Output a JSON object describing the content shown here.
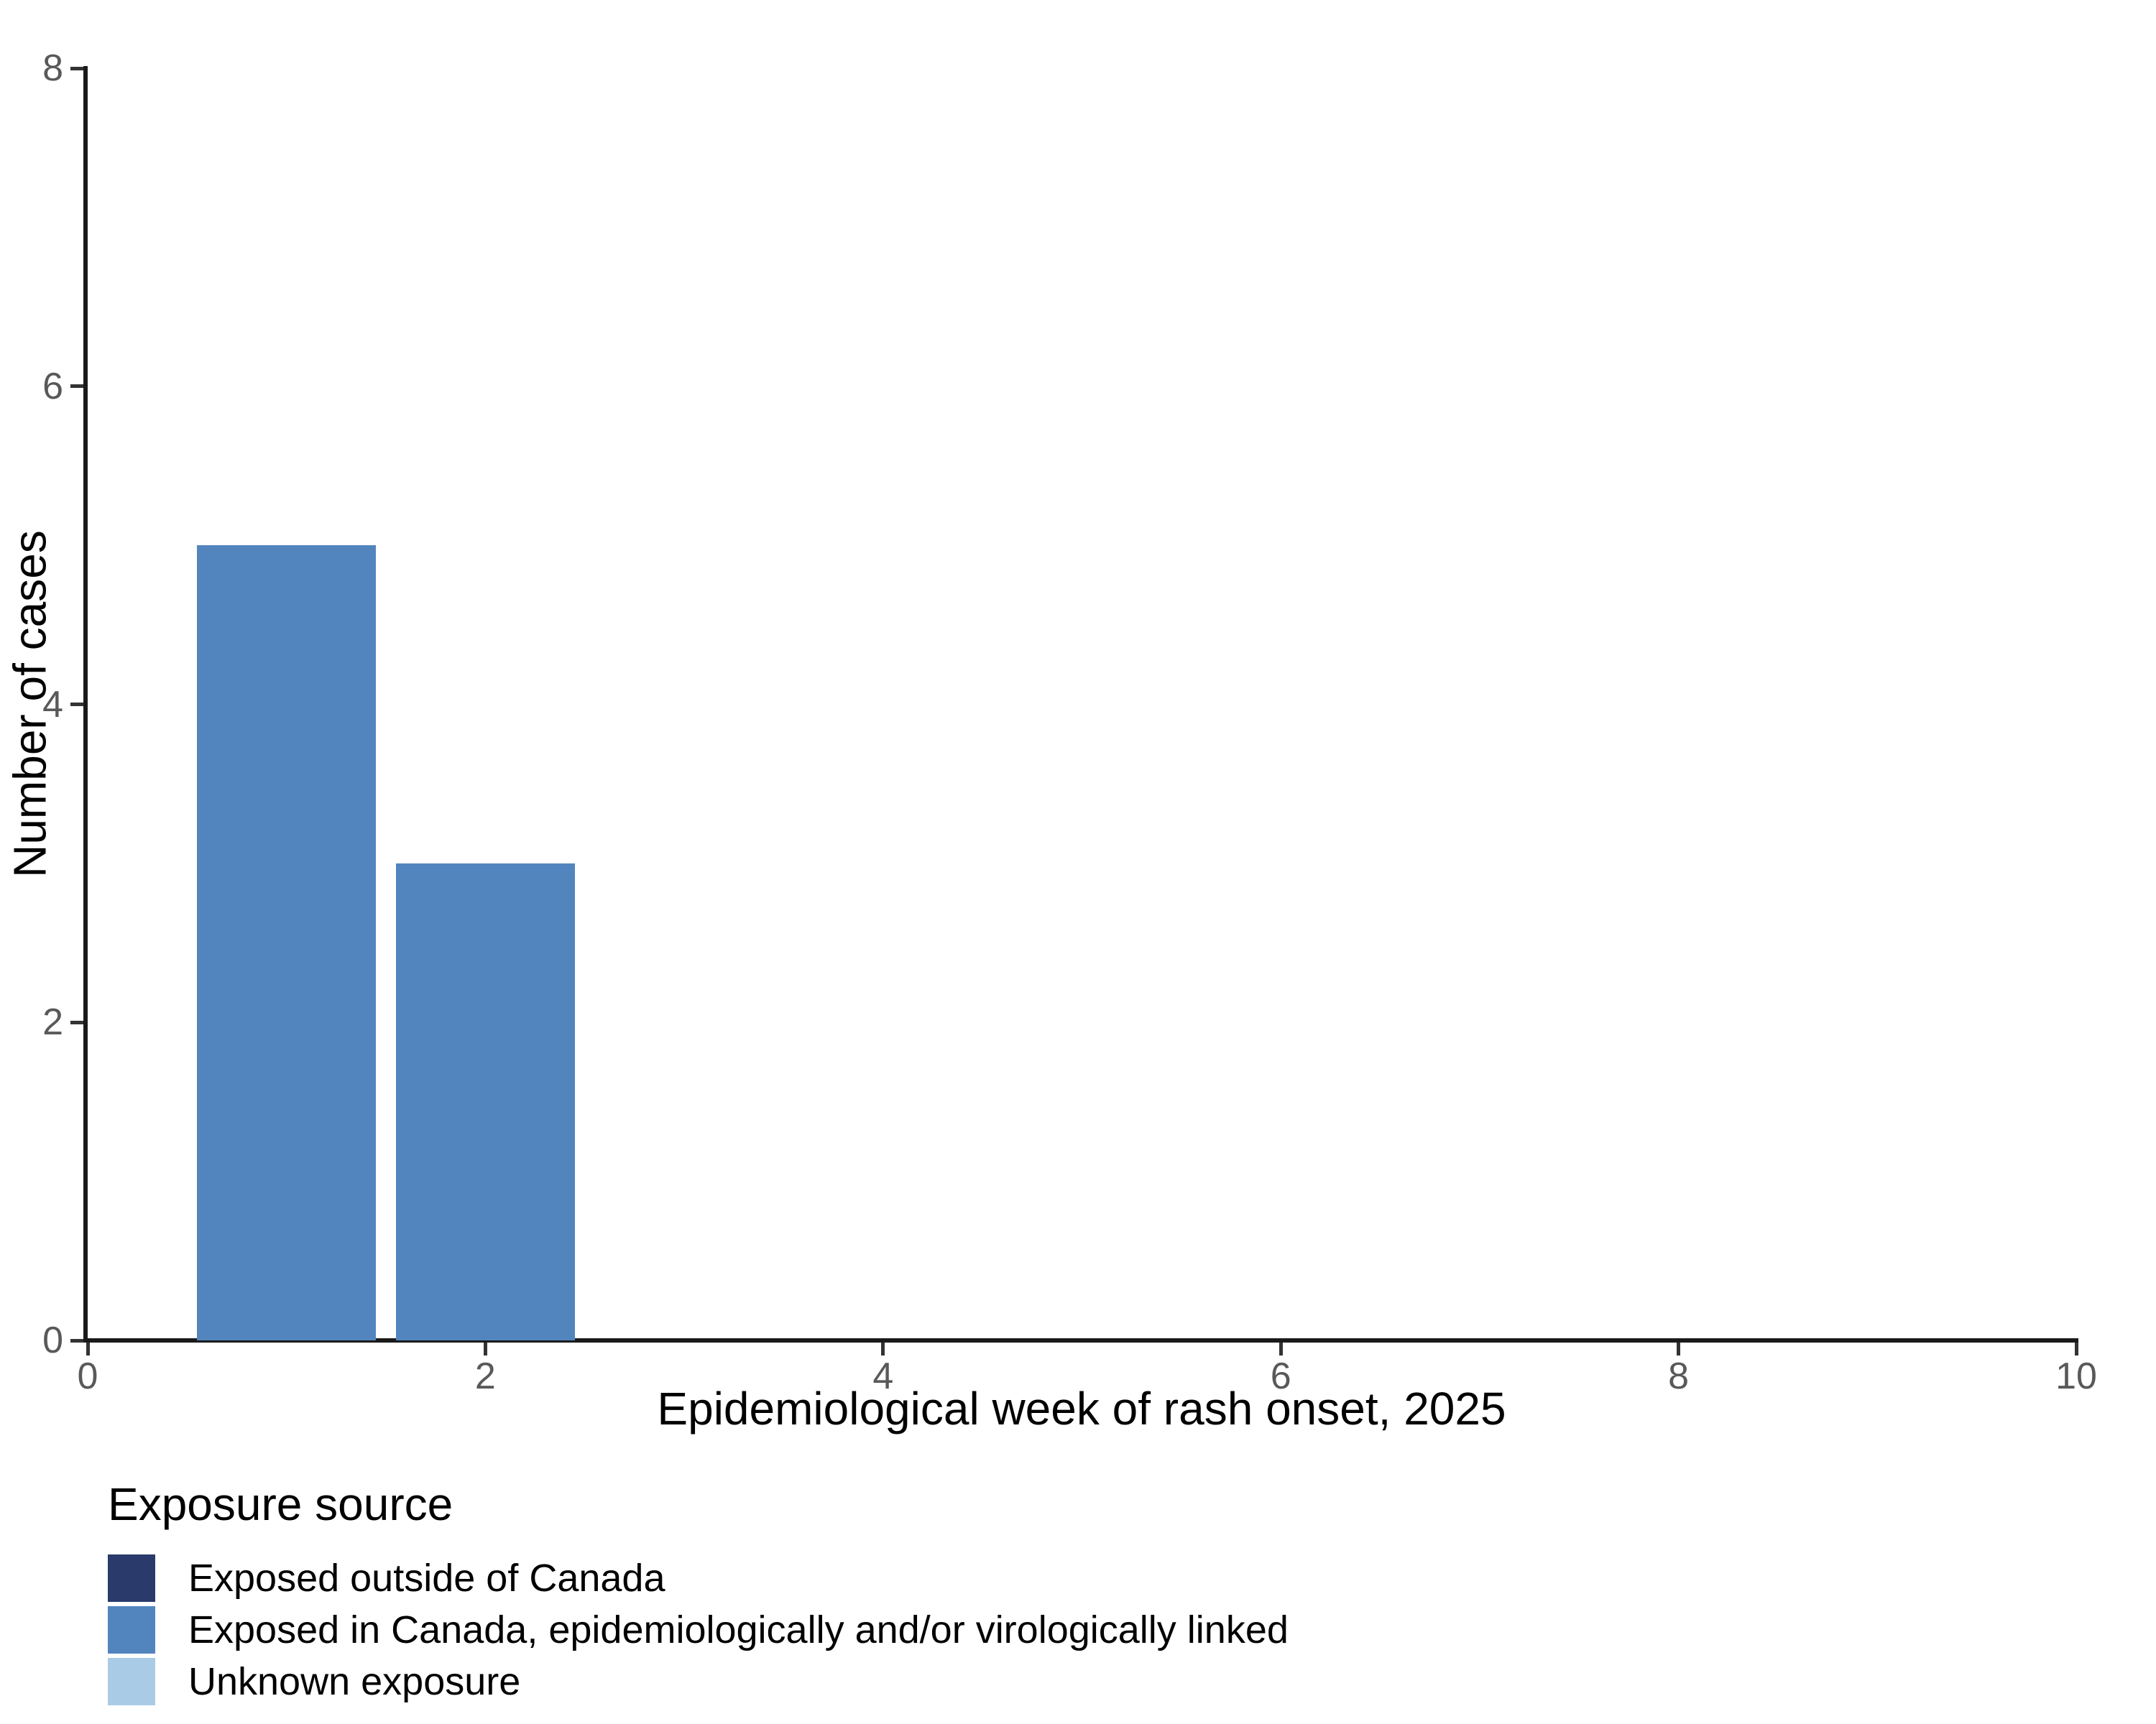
{
  "chart_data": {
    "type": "bar",
    "title": "",
    "xlabel": "Epidemiological week of rash onset, 2025",
    "ylabel": "Number of cases",
    "xlim": [
      0,
      10
    ],
    "ylim": [
      0,
      8
    ],
    "x_ticks": [
      "0",
      "2",
      "4",
      "6",
      "8",
      "10"
    ],
    "x_tick_values": [
      0,
      2,
      4,
      6,
      8,
      10
    ],
    "y_ticks": [
      "0",
      "2",
      "4",
      "6",
      "8"
    ],
    "y_tick_values": [
      0,
      2,
      4,
      6,
      8
    ],
    "grid": false,
    "bar_width_weeks": 0.9,
    "bars": [
      {
        "week": 1,
        "cases": 5,
        "series": "Exposed in Canada, epidemiologically and/or virologically linked"
      },
      {
        "week": 2,
        "cases": 3,
        "series": "Exposed in Canada, epidemiologically and/or virologically linked"
      }
    ],
    "legend": {
      "title": "Exposure source",
      "position": "bottom-left",
      "entries": [
        {
          "label": "Exposed outside of Canada",
          "color": "#293A6B"
        },
        {
          "label": "Exposed in Canada, epidemiologically and/or virologically linked",
          "color": "#5285BE"
        },
        {
          "label": "Unknown exposure",
          "color": "#AACBE5"
        }
      ]
    },
    "colors": {
      "axis_line": "#1a1a1a",
      "tick_mark": "#333333",
      "tick_label": "#595959",
      "axis_title": "#000000",
      "legend_text": "#000000",
      "background": "#ffffff"
    }
  }
}
